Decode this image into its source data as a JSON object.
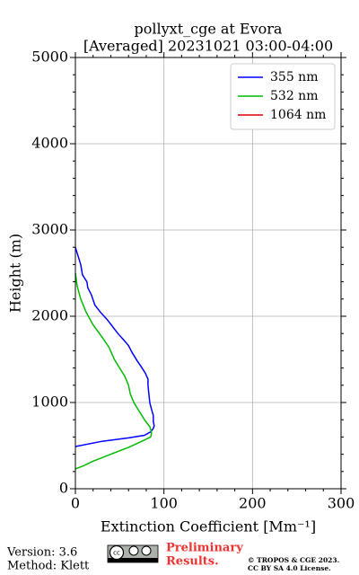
{
  "chart_data": {
    "type": "line",
    "orientation": "vertical-profile",
    "title": "pollyxt_cge at Evora",
    "subtitle": "[Averaged] 20231021 03:00-04:00",
    "xlabel": "Extinction Coefficient [Mm⁻¹]",
    "ylabel": "Height (m)",
    "xlim": [
      0,
      300
    ],
    "xticks": [
      0,
      100,
      200,
      300
    ],
    "xminorticks": [
      20,
      40,
      60,
      80,
      120,
      140,
      160,
      180,
      220,
      240,
      260,
      280
    ],
    "ylim": [
      0,
      5000
    ],
    "yticks": [
      0,
      1000,
      2000,
      3000,
      4000,
      5000
    ],
    "yminorticks": [
      200,
      400,
      600,
      800,
      1200,
      1400,
      1600,
      1800,
      2200,
      2400,
      2600,
      2800,
      3200,
      3400,
      3600,
      3800,
      4200,
      4400,
      4600,
      4800
    ],
    "grid": true,
    "legend": "upper right",
    "series": [
      {
        "name": "355 nm",
        "color": "#0000ff",
        "heights": [
          490,
          550,
          590,
          620,
          660,
          700,
          730,
          780,
          850,
          920,
          1000,
          1100,
          1200,
          1270,
          1340,
          1420,
          1480,
          1580,
          1660,
          1720,
          1800,
          1880,
          1960,
          2050,
          2130,
          2250,
          2330,
          2400,
          2480,
          2600,
          2700,
          2800
        ],
        "values": [
          0,
          30,
          60,
          78,
          85,
          88,
          89,
          88,
          88,
          86,
          84,
          83,
          82,
          82,
          79,
          74,
          70,
          64,
          60,
          55,
          48,
          42,
          36,
          28,
          22,
          18,
          14,
          13,
          8,
          6,
          3,
          0
        ]
      },
      {
        "name": "532 nm",
        "color": "#00bb00",
        "heights": [
          230,
          270,
          320,
          400,
          480,
          550,
          600,
          650,
          720,
          800,
          900,
          1000,
          1100,
          1200,
          1300,
          1400,
          1500,
          1640,
          1760,
          1900,
          2050,
          2200,
          2350,
          2500
        ],
        "values": [
          0,
          10,
          20,
          40,
          60,
          75,
          85,
          86,
          84,
          78,
          72,
          66,
          62,
          60,
          56,
          50,
          44,
          38,
          30,
          20,
          12,
          6,
          2,
          0
        ]
      },
      {
        "name": "1064 nm",
        "color": "#dd0000",
        "heights": [],
        "values": []
      }
    ]
  },
  "footer": {
    "version": "Version: 3.6",
    "method": "Method: Klett",
    "preliminary": [
      "Preliminary",
      "Results."
    ],
    "copyright": [
      "© TROPOS & CGE 2023.",
      "CC BY SA 4.0 License."
    ]
  }
}
